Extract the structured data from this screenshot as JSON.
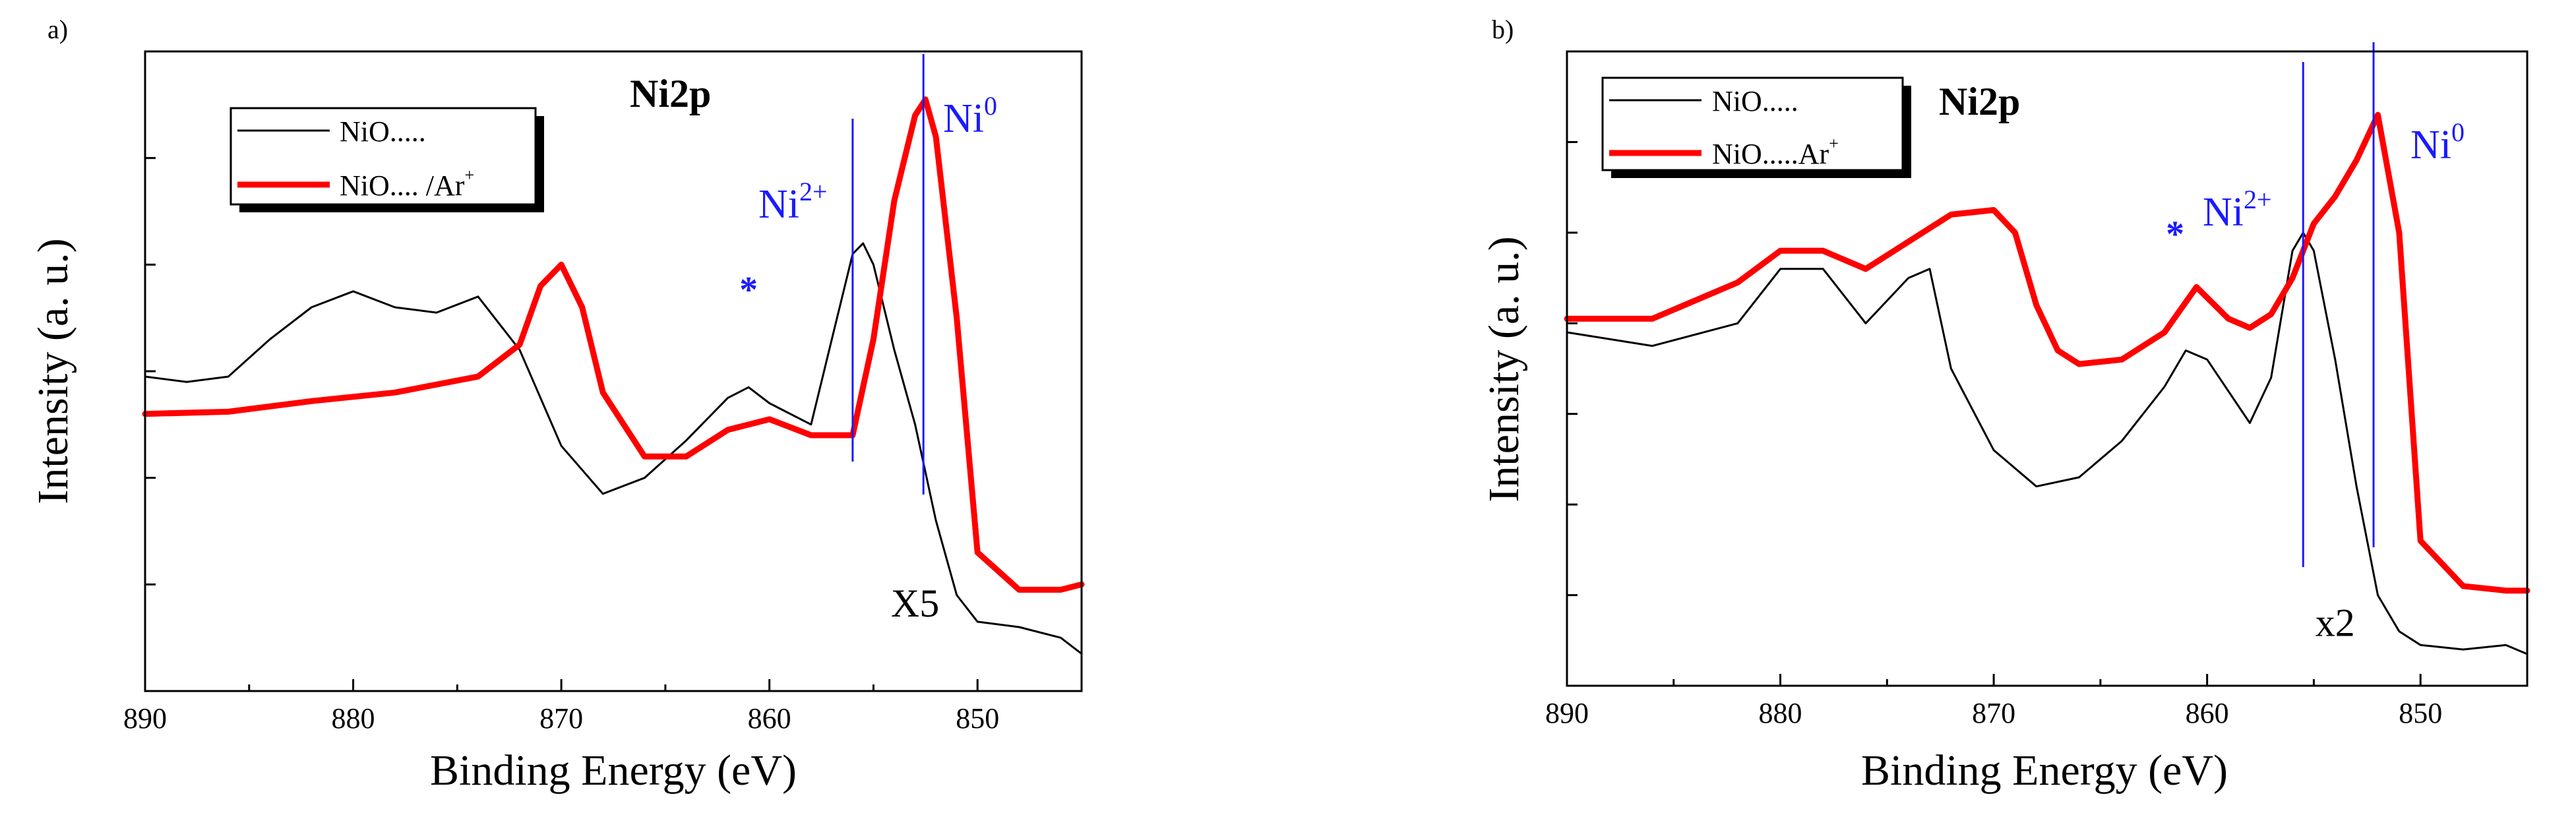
{
  "chart_data": [
    {
      "type": "line",
      "panel_label": "a)",
      "title": "Ni2p",
      "xlabel": "Binding Energy (eV)",
      "ylabel": "Intensity (a. u.)",
      "xlim": [
        890,
        845
      ],
      "ylim": [
        0,
        6
      ],
      "xticks": [
        890,
        880,
        870,
        860,
        850
      ],
      "y_tick_labels_shown": false,
      "legend": {
        "position": "top-left",
        "entries": [
          "NiO.....",
          "NiO.... /Ar"
        ],
        "superscript": "+"
      },
      "series": [
        {
          "name": "NiO.....",
          "color": "#000000",
          "x": [
            890,
            888,
            886,
            884,
            882,
            880,
            878,
            876,
            874,
            872,
            870,
            868,
            866,
            864,
            862,
            861,
            860,
            858,
            857,
            856,
            855.5,
            855,
            854,
            853,
            852,
            851,
            850,
            848,
            846,
            845
          ],
          "y": [
            2.95,
            2.9,
            2.95,
            3.3,
            3.6,
            3.75,
            3.6,
            3.55,
            3.7,
            3.2,
            2.3,
            1.85,
            2.0,
            2.35,
            2.75,
            2.85,
            2.7,
            2.5,
            3.3,
            4.1,
            4.2,
            4.0,
            3.2,
            2.5,
            1.6,
            0.9,
            0.65,
            0.6,
            0.5,
            0.35
          ]
        },
        {
          "name": "NiO.... /Ar+",
          "color": "#ff0000",
          "x": [
            890,
            886,
            882,
            878,
            874,
            872,
            871,
            870,
            869,
            868,
            866,
            864,
            862,
            860,
            858,
            856,
            855,
            854,
            853,
            852.5,
            852,
            851,
            850,
            848,
            846,
            845
          ],
          "y": [
            2.6,
            2.62,
            2.72,
            2.8,
            2.95,
            3.25,
            3.8,
            4.0,
            3.6,
            2.8,
            2.2,
            2.2,
            2.45,
            2.55,
            2.4,
            2.4,
            3.3,
            4.6,
            5.4,
            5.55,
            5.2,
            3.5,
            1.3,
            0.95,
            0.95,
            1.0
          ]
        }
      ],
      "vlines": [
        {
          "x": 856.0,
          "label": "Ni",
          "sup": "2+"
        },
        {
          "x": 852.6,
          "label": "Ni",
          "sup": "0"
        }
      ],
      "annotations": [
        {
          "text": "*",
          "x": 861,
          "y": 3.65
        },
        {
          "text": "X5",
          "x": 853,
          "y": 0.7
        }
      ]
    },
    {
      "type": "line",
      "panel_label": "b)",
      "title": "Ni2p",
      "xlabel": "Binding Energy (eV)",
      "ylabel": "Intensity (a. u.)",
      "xlim": [
        890,
        845
      ],
      "ylim": [
        0,
        7
      ],
      "xticks": [
        890,
        880,
        870,
        860,
        850
      ],
      "y_tick_labels_shown": false,
      "legend": {
        "position": "top-left",
        "entries": [
          "NiO.....",
          "NiO.....Ar"
        ],
        "superscript": "+"
      },
      "series": [
        {
          "name": "NiO.....",
          "color": "#000000",
          "x": [
            890,
            886,
            882,
            880,
            878,
            876,
            874,
            873,
            872,
            870,
            868,
            866,
            864,
            862,
            861,
            860,
            858,
            857,
            856,
            855.5,
            855,
            854,
            853,
            852,
            851,
            850,
            848,
            846,
            845
          ],
          "y": [
            3.9,
            3.75,
            4.0,
            4.6,
            4.6,
            4.0,
            4.5,
            4.6,
            3.5,
            2.6,
            2.2,
            2.3,
            2.7,
            3.3,
            3.7,
            3.6,
            2.9,
            3.4,
            4.8,
            5.0,
            4.8,
            3.6,
            2.2,
            1.0,
            0.6,
            0.45,
            0.4,
            0.45,
            0.35
          ]
        },
        {
          "name": "NiO.....Ar+",
          "color": "#ff0000",
          "x": [
            890,
            886,
            882,
            880,
            878,
            876,
            874,
            872,
            870,
            869,
            868,
            867,
            866,
            864,
            862,
            860.5,
            859,
            858,
            857,
            856,
            855,
            854,
            853,
            852,
            851,
            850,
            848,
            846,
            845
          ],
          "y": [
            4.05,
            4.05,
            4.45,
            4.8,
            4.8,
            4.6,
            4.9,
            5.2,
            5.25,
            5.0,
            4.2,
            3.7,
            3.55,
            3.6,
            3.9,
            4.4,
            4.05,
            3.95,
            4.1,
            4.5,
            5.1,
            5.4,
            5.8,
            6.3,
            5.0,
            1.6,
            1.1,
            1.05,
            1.05
          ]
        }
      ],
      "vlines": [
        {
          "x": 855.5,
          "label": "Ni",
          "sup": "2+"
        },
        {
          "x": 852.2,
          "label": "Ni",
          "sup": "0"
        }
      ],
      "annotations": [
        {
          "text": "*",
          "x": 861.5,
          "y": 4.85
        },
        {
          "text": "x2",
          "x": 854,
          "y": 0.55
        }
      ]
    }
  ]
}
